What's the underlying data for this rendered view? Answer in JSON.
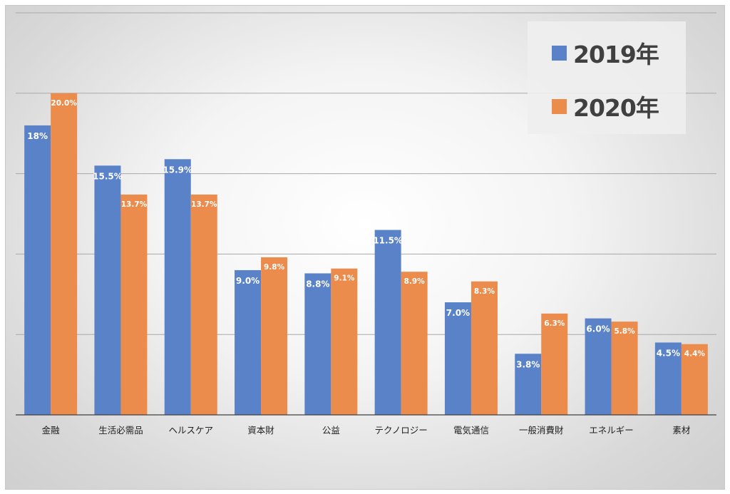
{
  "chart_data": {
    "type": "bar",
    "categories": [
      "金融",
      "生活必需品",
      "ヘルスケア",
      "資本財",
      "公益",
      "テクノロジー",
      "電気通信",
      "一般消費財",
      "エネルギー",
      "素材"
    ],
    "series": [
      {
        "name": "2019年",
        "color": "#5a82c8",
        "values": [
          18.0,
          15.5,
          15.9,
          9.0,
          8.8,
          11.5,
          7.0,
          3.8,
          6.0,
          4.5
        ],
        "labels": [
          "18%",
          "15.5%",
          "15.9%",
          "9.0%",
          "8.8%",
          "11.5%",
          "7.0%",
          "3.8%",
          "6.0%",
          "4.5%"
        ]
      },
      {
        "name": "2020年",
        "color": "#ec8c4c",
        "values": [
          20.0,
          13.7,
          13.7,
          9.8,
          9.1,
          8.9,
          8.3,
          6.3,
          5.8,
          4.4
        ],
        "labels": [
          "20.0%",
          "13.7%",
          "13.7%",
          "9.8%",
          "9.1%",
          "8.9%",
          "8.3%",
          "6.3%",
          "5.8%",
          "4.4%"
        ]
      }
    ],
    "ylim": [
      0,
      25
    ],
    "gridlines": true,
    "legend_position": "top-right"
  }
}
